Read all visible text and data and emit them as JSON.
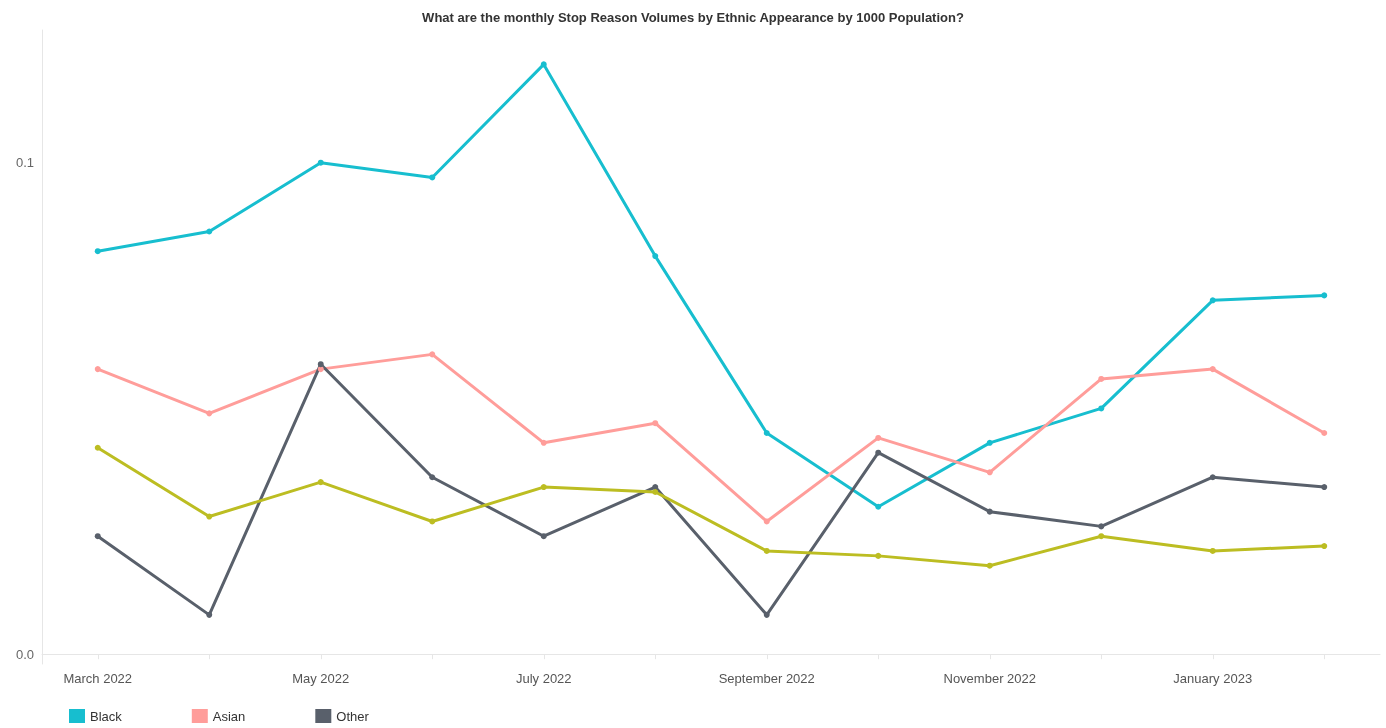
{
  "chart_data": {
    "type": "line",
    "title": "What are the monthly Stop Reason Volumes by Ethnic Appearance by 1000 Population?",
    "categories": [
      "March 2022",
      null,
      "May 2022",
      null,
      "July 2022",
      null,
      "September 2022",
      null,
      "November 2022",
      null,
      "January 2023",
      null
    ],
    "series": [
      {
        "name": "Black",
        "color": "#17becf",
        "values": [
          0.082,
          0.086,
          0.1,
          0.097,
          0.12,
          0.081,
          0.045,
          0.03,
          0.043,
          0.05,
          0.072,
          0.073
        ]
      },
      {
        "name": "Asian",
        "color": "#ff9d9a",
        "values": [
          0.058,
          0.049,
          0.058,
          0.061,
          0.043,
          0.047,
          0.027,
          0.044,
          0.037,
          0.056,
          0.058,
          0.045
        ]
      },
      {
        "name": "Other",
        "color": "#59606b",
        "values": [
          0.024,
          0.008,
          0.059,
          0.036,
          0.024,
          0.034,
          0.008,
          0.041,
          0.029,
          0.026,
          0.036,
          0.034
        ]
      },
      {
        "color": "#bcbd22",
        "values": [
          0.042,
          0.028,
          0.035,
          0.027,
          0.034,
          0.033,
          0.021,
          0.02,
          0.018,
          0.024,
          0.021,
          0.022
        ]
      }
    ],
    "ylim": [
      -0.002,
      0.127
    ],
    "yticks": [
      {
        "value": 0,
        "label": "0.0"
      },
      0.1
    ],
    "grid": false,
    "legend": "bottom left",
    "marker": "circle",
    "line_style": "solid"
  }
}
